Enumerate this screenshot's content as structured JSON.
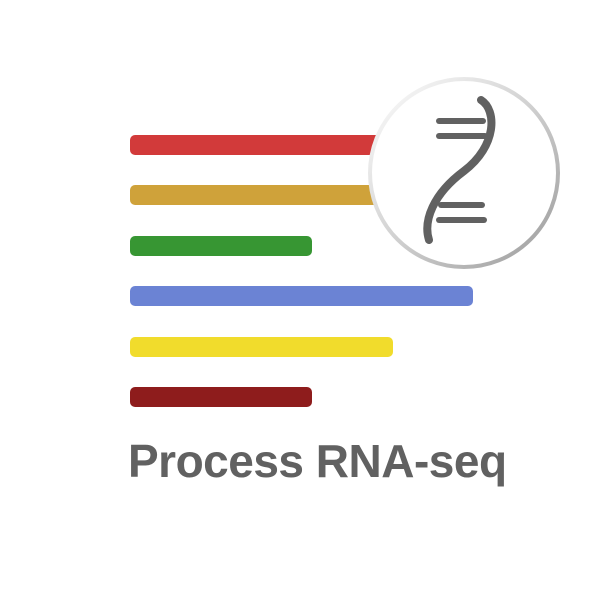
{
  "title": "Process RNA-seq",
  "bars": [
    {
      "color": "#d23a3a",
      "fraction": 0.88
    },
    {
      "color": "#cfa23a",
      "fraction": 0.73
    },
    {
      "color": "#379633",
      "fraction": 0.53
    },
    {
      "color": "#6b83d4",
      "fraction": 1.0
    },
    {
      "color": "#f1dc2c",
      "fraction": 0.77
    },
    {
      "color": "#8e1c1c",
      "fraction": 0.53
    }
  ],
  "badge": {
    "icon": "dna-icon",
    "icon_color": "#616161",
    "ring_color": "#a9a9a9"
  },
  "text_color": "#616161"
}
